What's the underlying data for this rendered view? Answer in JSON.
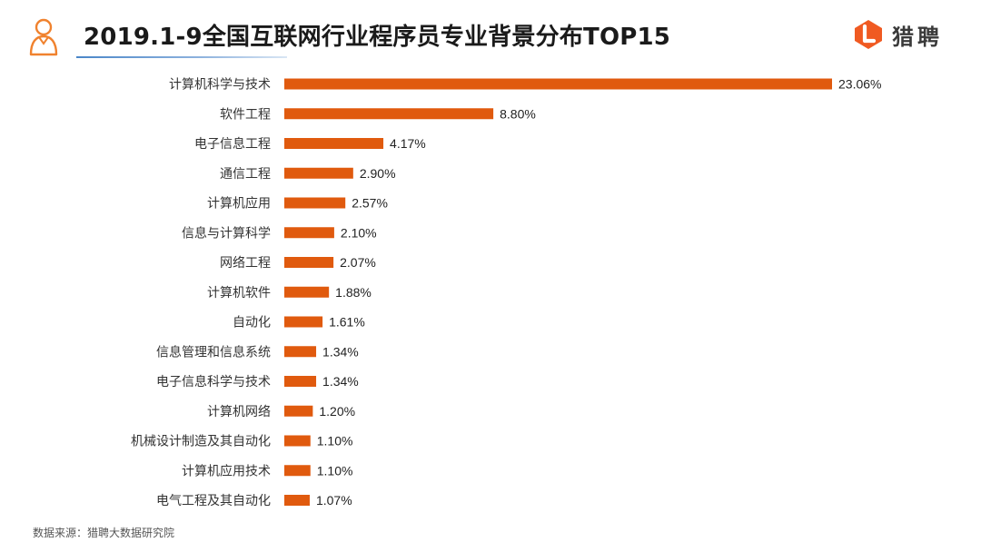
{
  "header": {
    "title": "2019.1-9全国互联网行业程序员专业背景分布TOP15",
    "logo_text": "猎聘",
    "icon": "person-outline-icon",
    "logo_icon": "liepin-logo-icon"
  },
  "source_note": "数据来源：猎聘大数据研究院",
  "colors": {
    "bar": "#E05A0E",
    "title_underline": "#4A86C8",
    "logo": "#F05A22"
  },
  "chart_data": {
    "type": "bar",
    "orientation": "horizontal",
    "title": "2019.1-9全国互联网行业程序员专业背景分布TOP15",
    "xlabel": "",
    "ylabel": "",
    "categories": [
      "计算机科学与技术",
      "软件工程",
      "电子信息工程",
      "通信工程",
      "计算机应用",
      "信息与计算科学",
      "网络工程",
      "计算机软件",
      "自动化",
      "信息管理和信息系统",
      "电子信息科学与技术",
      "计算机网络",
      "机械设计制造及其自动化",
      "计算机应用技术",
      "电气工程及其自动化"
    ],
    "values": [
      23.06,
      8.8,
      4.17,
      2.9,
      2.57,
      2.1,
      2.07,
      1.88,
      1.61,
      1.34,
      1.34,
      1.2,
      1.1,
      1.1,
      1.07
    ],
    "value_labels": [
      "23.06%",
      "8.80%",
      "4.17%",
      "2.90%",
      "2.57%",
      "2.10%",
      "2.07%",
      "1.88%",
      "1.61%",
      "1.34%",
      "1.34%",
      "1.20%",
      "1.10%",
      "1.10%",
      "1.07%"
    ],
    "unit": "%",
    "xlim": [
      0,
      23.06
    ],
    "grid": false,
    "legend": "none"
  }
}
